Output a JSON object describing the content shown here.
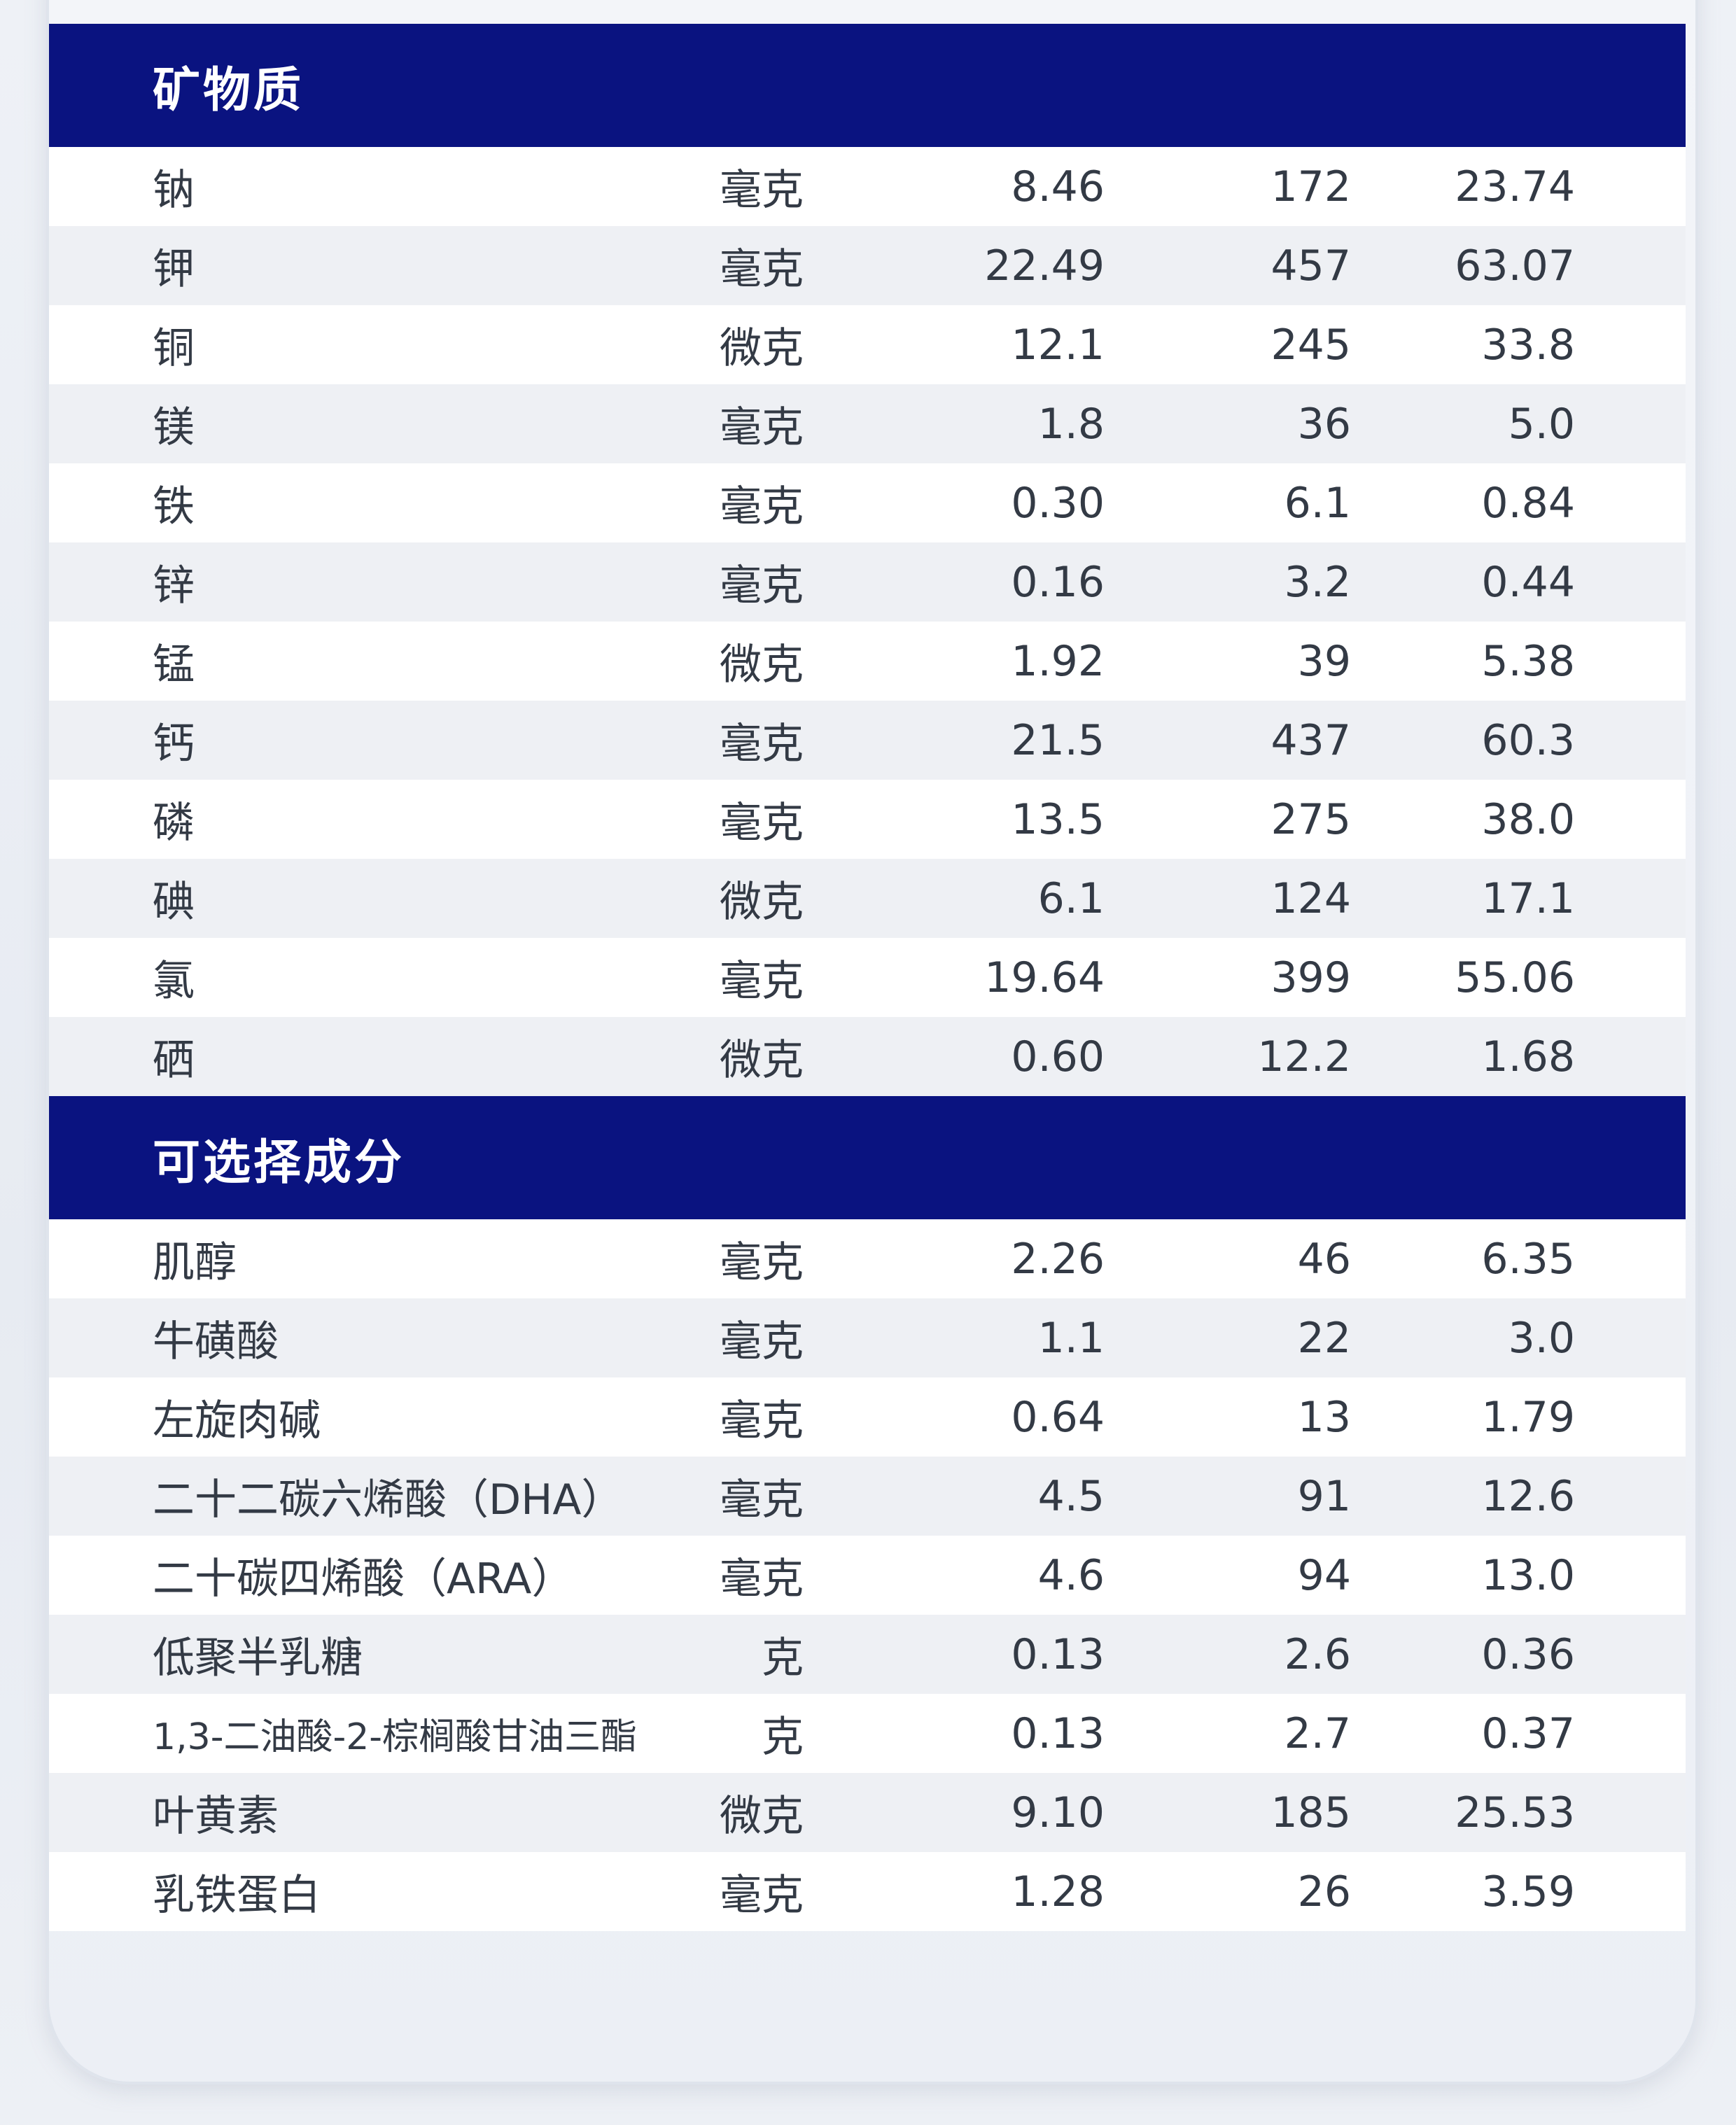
{
  "sections": [
    {
      "title": "矿物质",
      "rows": [
        {
          "name": "钠",
          "unit": "毫克",
          "v1": "8.46",
          "v2": "172",
          "v3": "23.74"
        },
        {
          "name": "钾",
          "unit": "毫克",
          "v1": "22.49",
          "v2": "457",
          "v3": "63.07"
        },
        {
          "name": "铜",
          "unit": "微克",
          "v1": "12.1",
          "v2": "245",
          "v3": "33.8"
        },
        {
          "name": "镁",
          "unit": "毫克",
          "v1": "1.8",
          "v2": "36",
          "v3": "5.0"
        },
        {
          "name": "铁",
          "unit": "毫克",
          "v1": "0.30",
          "v2": "6.1",
          "v3": "0.84"
        },
        {
          "name": "锌",
          "unit": "毫克",
          "v1": "0.16",
          "v2": "3.2",
          "v3": "0.44"
        },
        {
          "name": "锰",
          "unit": "微克",
          "v1": "1.92",
          "v2": "39",
          "v3": "5.38"
        },
        {
          "name": "钙",
          "unit": "毫克",
          "v1": "21.5",
          "v2": "437",
          "v3": "60.3"
        },
        {
          "name": "磷",
          "unit": "毫克",
          "v1": "13.5",
          "v2": "275",
          "v3": "38.0"
        },
        {
          "name": "碘",
          "unit": "微克",
          "v1": "6.1",
          "v2": "124",
          "v3": "17.1"
        },
        {
          "name": "氯",
          "unit": "毫克",
          "v1": "19.64",
          "v2": "399",
          "v3": "55.06"
        },
        {
          "name": "硒",
          "unit": "微克",
          "v1": "0.60",
          "v2": "12.2",
          "v3": "1.68"
        }
      ]
    },
    {
      "title": "可选择成分",
      "rows": [
        {
          "name": "肌醇",
          "unit": "毫克",
          "v1": "2.26",
          "v2": "46",
          "v3": "6.35"
        },
        {
          "name": "牛磺酸",
          "unit": "毫克",
          "v1": "1.1",
          "v2": "22",
          "v3": "3.0"
        },
        {
          "name": "左旋肉碱",
          "unit": "毫克",
          "v1": "0.64",
          "v2": "13",
          "v3": "1.79"
        },
        {
          "name": "二十二碳六烯酸（DHA）",
          "unit": "毫克",
          "v1": "4.5",
          "v2": "91",
          "v3": "12.6"
        },
        {
          "name": "二十碳四烯酸（ARA）",
          "unit": "毫克",
          "v1": "4.6",
          "v2": "94",
          "v3": "13.0"
        },
        {
          "name": "低聚半乳糖",
          "unit": "克",
          "v1": "0.13",
          "v2": "2.6",
          "v3": "0.36"
        },
        {
          "name": "1,3-二油酸-2-棕榈酸甘油三酯",
          "unit": "克",
          "v1": "0.13",
          "v2": "2.7",
          "v3": "0.37"
        },
        {
          "name": "叶黄素",
          "unit": "微克",
          "v1": "9.10",
          "v2": "185",
          "v3": "25.53"
        },
        {
          "name": "乳铁蛋白",
          "unit": "毫克",
          "v1": "1.28",
          "v2": "26",
          "v3": "3.59"
        }
      ]
    }
  ]
}
